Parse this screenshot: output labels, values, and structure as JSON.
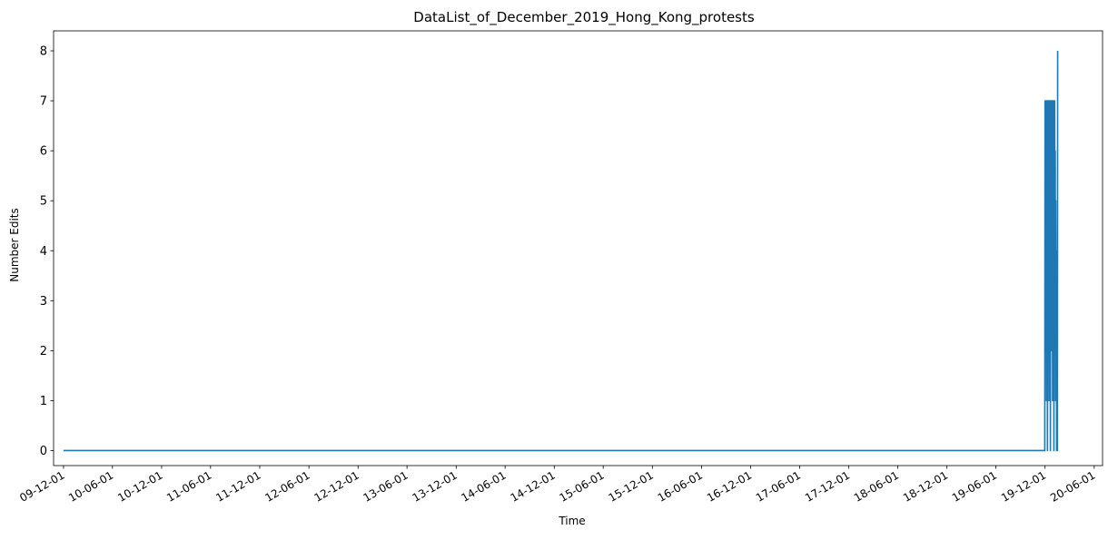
{
  "chart_data": {
    "type": "line",
    "title": "DataList_of_December_2019_Hong_Kong_protests",
    "xlabel": "Time",
    "ylabel": "Number Edits",
    "ylim": [
      -0.3,
      8.4
    ],
    "yticks": [
      0,
      1,
      2,
      3,
      4,
      5,
      6,
      7,
      8
    ],
    "xlim": [
      "2009-10-25",
      "2020-07-02"
    ],
    "xticks": [
      "09-12-01",
      "10-06-01",
      "10-12-01",
      "11-06-01",
      "11-12-01",
      "12-06-01",
      "12-12-01",
      "13-06-01",
      "13-12-01",
      "14-06-01",
      "14-12-01",
      "15-06-01",
      "15-12-01",
      "16-06-01",
      "16-12-01",
      "17-06-01",
      "17-12-01",
      "18-06-01",
      "18-12-01",
      "19-06-01",
      "19-12-01",
      "20-06-01"
    ],
    "grid": false,
    "colors": {
      "line": "#1f77b4"
    },
    "series": [
      {
        "x": [
          "2009-12-01",
          "2019-11-30",
          "2019-12-01",
          "2019-12-02",
          "2019-12-03",
          "2019-12-04",
          "2019-12-05",
          "2019-12-06",
          "2019-12-07",
          "2019-12-08",
          "2019-12-09",
          "2019-12-10",
          "2019-12-11",
          "2019-12-12",
          "2019-12-13",
          "2019-12-14",
          "2019-12-15",
          "2019-12-16",
          "2019-12-17",
          "2019-12-18",
          "2019-12-19",
          "2019-12-20",
          "2019-12-21",
          "2019-12-22",
          "2019-12-23",
          "2019-12-24",
          "2019-12-25",
          "2019-12-26",
          "2019-12-27",
          "2019-12-28",
          "2019-12-29",
          "2019-12-30",
          "2019-12-31",
          "2020-01-01",
          "2020-01-02",
          "2020-01-03",
          "2020-01-04",
          "2020-01-05",
          "2020-01-06",
          "2020-01-07",
          "2020-01-08",
          "2020-01-09",
          "2020-01-10",
          "2020-01-11",
          "2020-01-12",
          "2020-01-13",
          "2020-01-14",
          "2020-01-15",
          "2020-01-16",
          "2020-01-17"
        ],
        "y": [
          0,
          0,
          7,
          2,
          7,
          3,
          6,
          1,
          7,
          4,
          7,
          0,
          5,
          7,
          2,
          6,
          7,
          1,
          7,
          3,
          6,
          7,
          0,
          5,
          7,
          2,
          7,
          4,
          6,
          7,
          1,
          7,
          3,
          5,
          7,
          0,
          6,
          4,
          7,
          2,
          6,
          1,
          5,
          3,
          4,
          0,
          2,
          1,
          0,
          8
        ]
      }
    ]
  }
}
